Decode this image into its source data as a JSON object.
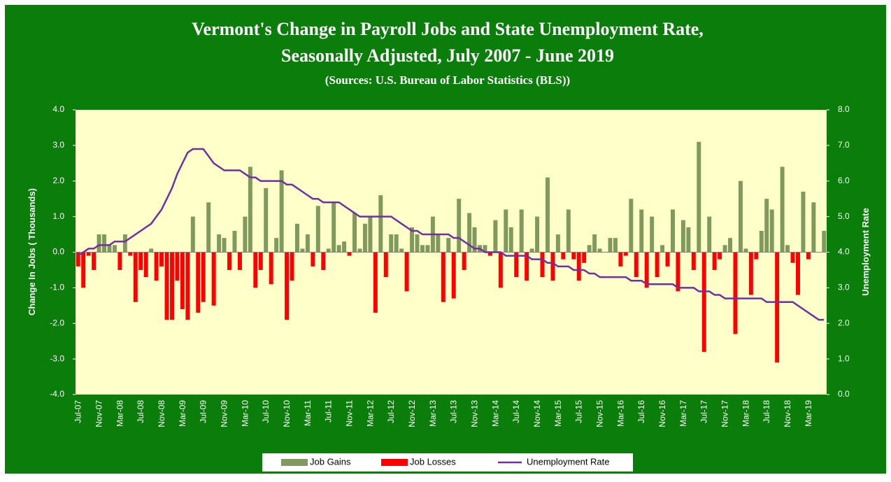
{
  "chart_data": {
    "type": "bar-line",
    "title": "Vermont's Change in Payroll  Jobs and State Unemployment Rate,",
    "subtitle": "Seasonally  Adjusted, July 2007  - June 2019",
    "source": "(Sources: U.S. Bureau of Labor Statistics (BLS))",
    "y_label": "Change In Jobs ( Thousands)",
    "y2_label": "Unemployment Rate",
    "categories": [
      "Jul-07",
      null,
      null,
      null,
      "Nov-07",
      null,
      null,
      null,
      "Mar-08",
      null,
      null,
      null,
      "Jul-08",
      null,
      null,
      null,
      "Nov-08",
      null,
      null,
      null,
      "Mar-09",
      null,
      null,
      null,
      "Jul-09",
      null,
      null,
      null,
      "Nov-09",
      null,
      null,
      null,
      "Mar-10",
      null,
      null,
      null,
      "Jul-10",
      null,
      null,
      null,
      "Nov-10",
      null,
      null,
      null,
      "Mar-11",
      null,
      null,
      null,
      "Jul-11",
      null,
      null,
      null,
      "Nov-11",
      null,
      null,
      null,
      "Mar-12",
      null,
      null,
      null,
      "Jul-12",
      null,
      null,
      null,
      "Nov-12",
      null,
      null,
      null,
      "Mar-13",
      null,
      null,
      null,
      "Jul-13",
      null,
      null,
      null,
      "Nov-13",
      null,
      null,
      null,
      "Mar-14",
      null,
      null,
      null,
      "Jul-14",
      null,
      null,
      null,
      "Nov-14",
      null,
      null,
      null,
      "Mar-15",
      null,
      null,
      null,
      "Jul-15",
      null,
      null,
      null,
      "Nov-15",
      null,
      null,
      null,
      "Mar-16",
      null,
      null,
      null,
      "Jul-16",
      null,
      null,
      null,
      "Nov-16",
      null,
      null,
      null,
      "Mar-17",
      null,
      null,
      null,
      "Jul-17",
      null,
      null,
      null,
      "Nov-17",
      null,
      null,
      null,
      "Mar-18",
      null,
      null,
      null,
      "Jul-18",
      null,
      null,
      null,
      "Nov-18",
      null,
      null,
      null,
      "Mar-19",
      null,
      null,
      null
    ],
    "series": [
      {
        "name": "Job Gains",
        "color": "#7f9a5c",
        "kind": "bar",
        "values": [
          null,
          null,
          null,
          null,
          0.5,
          0.5,
          0.2,
          0.2,
          null,
          0.5,
          null,
          null,
          null,
          null,
          0.1,
          null,
          null,
          null,
          null,
          null,
          null,
          null,
          1.0,
          null,
          null,
          1.4,
          null,
          0.5,
          0.4,
          null,
          0.6,
          null,
          1.0,
          2.4,
          null,
          null,
          1.8,
          null,
          0.4,
          2.3,
          null,
          null,
          0.8,
          0.1,
          0.5,
          null,
          1.3,
          null,
          0.1,
          1.4,
          0.2,
          0.3,
          null,
          1.1,
          0.1,
          0.8,
          1.0,
          null,
          1.6,
          null,
          0.5,
          0.5,
          0.1,
          null,
          0.7,
          0.5,
          0.2,
          0.2,
          1.0,
          0.5,
          null,
          0.4,
          null,
          1.5,
          null,
          1.1,
          0.7,
          0.2,
          0.2,
          null,
          0.9,
          null,
          1.2,
          0.7,
          null,
          1.2,
          null,
          0.1,
          1.0,
          null,
          2.1,
          null,
          0.5,
          null,
          1.2,
          null,
          null,
          null,
          0.2,
          0.5,
          0.1,
          0.0,
          0.4,
          0.4,
          null,
          null,
          1.5,
          null,
          1.2,
          null,
          1.0,
          null,
          0.2,
          null,
          1.2,
          null,
          0.9,
          0.7,
          null,
          3.1,
          null,
          1.0,
          null,
          null,
          0.2,
          0.4,
          null,
          2.0,
          0.1,
          null,
          null,
          0.6,
          1.5,
          1.2,
          null,
          2.4,
          0.2,
          null,
          null,
          1.7,
          null,
          1.4,
          0.0,
          0.6
        ]
      },
      {
        "name": "Job Losses",
        "color": "#ff0000",
        "kind": "bar",
        "values": [
          -0.4,
          -1.0,
          -0.1,
          -0.5,
          null,
          null,
          null,
          null,
          -0.5,
          null,
          -0.1,
          -1.4,
          -0.5,
          -0.7,
          null,
          -0.8,
          -0.4,
          -1.9,
          -1.9,
          -0.8,
          -1.6,
          -1.9,
          null,
          -1.7,
          -1.4,
          null,
          -1.5,
          null,
          null,
          -0.5,
          null,
          -0.5,
          null,
          null,
          -1.0,
          -0.5,
          null,
          -0.9,
          null,
          null,
          -1.9,
          -0.8,
          null,
          null,
          null,
          -0.4,
          null,
          -0.5,
          null,
          null,
          null,
          null,
          -0.1,
          null,
          null,
          null,
          null,
          -1.7,
          null,
          -0.7,
          null,
          null,
          null,
          -1.1,
          null,
          null,
          null,
          null,
          null,
          null,
          -1.4,
          null,
          -1.3,
          null,
          -0.5,
          null,
          null,
          null,
          null,
          -0.1,
          null,
          -1.0,
          null,
          null,
          -0.7,
          null,
          -0.8,
          null,
          null,
          -0.7,
          null,
          -0.8,
          null,
          -0.2,
          null,
          -0.2,
          -0.8,
          -0.3,
          null,
          null,
          null,
          null,
          null,
          null,
          -0.4,
          -0.1,
          null,
          -0.7,
          null,
          -1.0,
          null,
          -0.7,
          null,
          -0.4,
          null,
          -1.1,
          null,
          null,
          -0.5,
          null,
          -2.8,
          null,
          -0.5,
          -0.2,
          null,
          null,
          -2.3,
          null,
          null,
          -1.2,
          -0.2,
          null,
          null,
          null,
          -3.1,
          null,
          null,
          -0.3,
          -1.2,
          null,
          -0.2,
          null,
          null,
          null
        ]
      },
      {
        "name": "Unemployment Rate",
        "color": "#7030a0",
        "kind": "line",
        "axis": "y2",
        "values": [
          3.9,
          4.0,
          4.1,
          4.1,
          4.2,
          4.2,
          4.2,
          4.3,
          4.3,
          4.3,
          4.4,
          4.5,
          4.6,
          4.7,
          4.8,
          5.0,
          5.2,
          5.5,
          5.8,
          6.2,
          6.5,
          6.8,
          6.9,
          6.9,
          6.9,
          6.7,
          6.5,
          6.4,
          6.3,
          6.3,
          6.3,
          6.3,
          6.2,
          6.1,
          6.1,
          6.0,
          6.0,
          6.0,
          6.0,
          6.0,
          5.9,
          5.9,
          5.8,
          5.7,
          5.6,
          5.5,
          5.5,
          5.4,
          5.4,
          5.4,
          5.4,
          5.3,
          5.2,
          5.1,
          5.0,
          5.0,
          5.0,
          5.0,
          5.0,
          5.0,
          5.0,
          4.9,
          4.8,
          4.7,
          4.6,
          4.6,
          4.5,
          4.5,
          4.5,
          4.5,
          4.5,
          4.5,
          4.4,
          4.4,
          4.3,
          4.2,
          4.1,
          4.1,
          4.0,
          4.0,
          4.0,
          4.0,
          3.9,
          3.9,
          3.9,
          3.9,
          3.9,
          3.8,
          3.8,
          3.8,
          3.7,
          3.7,
          3.6,
          3.6,
          3.6,
          3.5,
          3.5,
          3.5,
          3.4,
          3.4,
          3.3,
          3.3,
          3.3,
          3.3,
          3.3,
          3.3,
          3.2,
          3.2,
          3.2,
          3.1,
          3.1,
          3.1,
          3.1,
          3.1,
          3.1,
          3.0,
          3.0,
          3.0,
          3.0,
          2.9,
          2.9,
          2.9,
          2.8,
          2.8,
          2.7,
          2.7,
          2.7,
          2.7,
          2.7,
          2.7,
          2.7,
          2.7,
          2.6,
          2.6,
          2.6,
          2.6,
          2.6,
          2.6,
          2.5,
          2.4,
          2.3,
          2.2,
          2.1,
          2.1
        ]
      }
    ],
    "ylim": [
      -4,
      4
    ],
    "yticks": [
      {
        "value": -4,
        "label": "-4.0"
      },
      {
        "value": -3,
        "label": "-3.0"
      },
      {
        "value": -2,
        "label": "-2.0"
      },
      {
        "value": -1,
        "label": "-1.0"
      },
      {
        "value": 0,
        "label": "0.0"
      },
      {
        "value": 1,
        "label": "1.0"
      },
      {
        "value": 2,
        "label": "2.0"
      },
      {
        "value": 3,
        "label": "3.0"
      },
      {
        "value": 4,
        "label": "4.0"
      }
    ],
    "y2lim": [
      0,
      8
    ],
    "y2ticks": [
      {
        "value": 0,
        "label": "0.0"
      },
      {
        "value": 1,
        "label": "1.0"
      },
      {
        "value": 2,
        "label": "2.0"
      },
      {
        "value": 3,
        "label": "3.0"
      },
      {
        "value": 4,
        "label": "4.0"
      },
      {
        "value": 5,
        "label": "5.0"
      },
      {
        "value": 6,
        "label": "6.0"
      },
      {
        "value": 7,
        "label": "7.0"
      },
      {
        "value": 8,
        "label": "8.0"
      }
    ],
    "legend": "bottom",
    "background": "#0b7d0b",
    "plot_background": "#ffffc9"
  }
}
